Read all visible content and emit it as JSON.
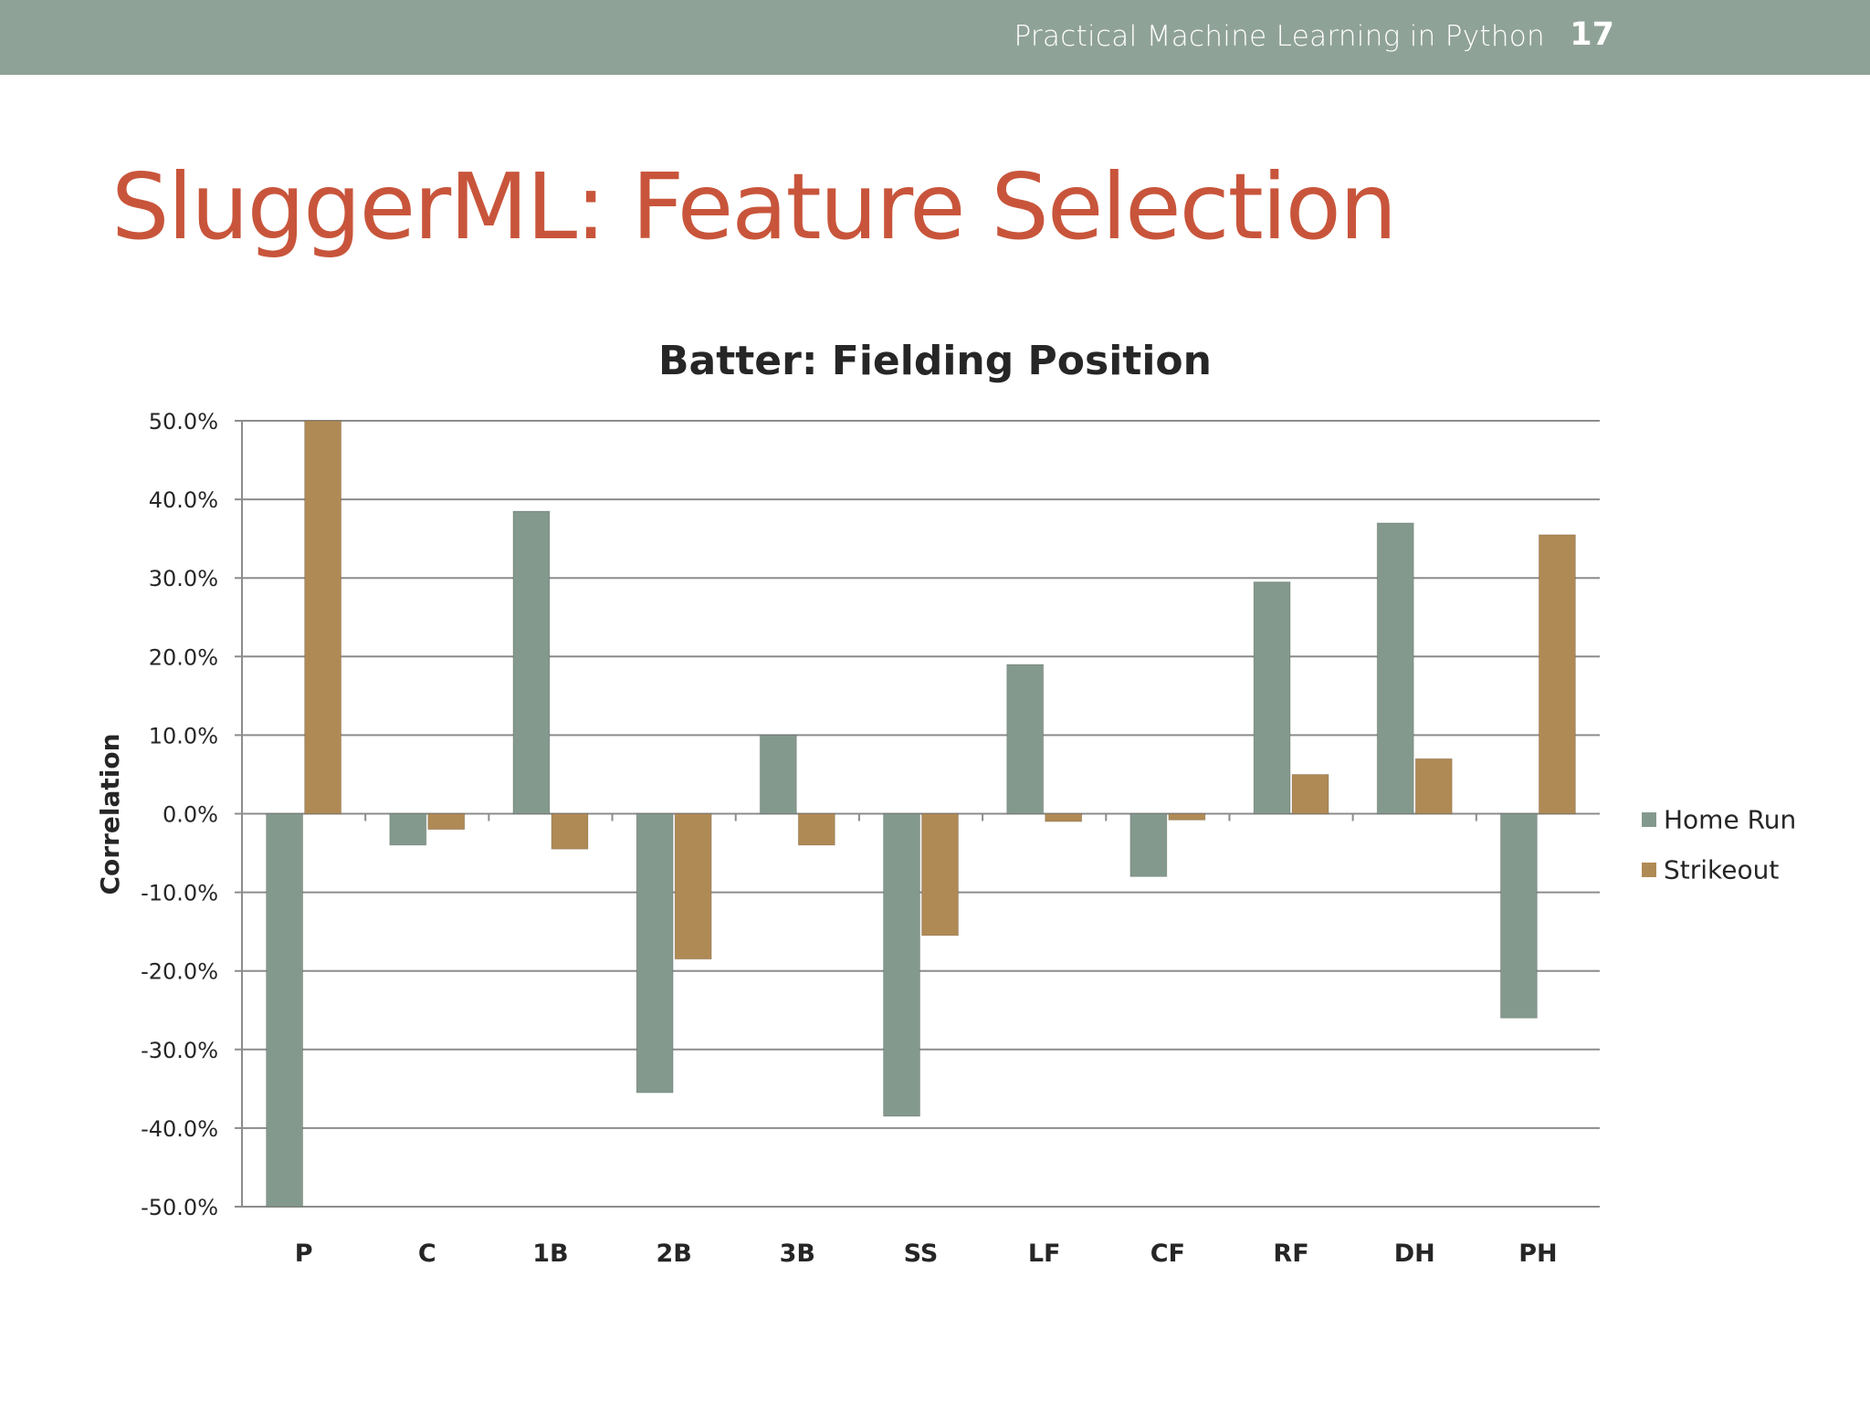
{
  "header": {
    "deck_title": "Practical Machine Learning in Python",
    "slide_number": "17"
  },
  "slide": {
    "title": "SluggerML: Feature Selection"
  },
  "colors": {
    "header_bar": "#8fa298",
    "title": "#c8553b",
    "home_run": "#84998d",
    "strikeout": "#b08a55"
  },
  "chart_data": {
    "type": "bar",
    "title": "Batter: Fielding Position",
    "xlabel": "",
    "ylabel": "Correlation",
    "ylim": [
      -0.5,
      0.5
    ],
    "yticks": [
      0.5,
      0.4,
      0.3,
      0.2,
      0.1,
      0.0,
      -0.1,
      -0.2,
      -0.3,
      -0.4,
      -0.5
    ],
    "ytick_labels": [
      "50.0%",
      "40.0%",
      "30.0%",
      "20.0%",
      "10.0%",
      "0.0%",
      "-10.0%",
      "-20.0%",
      "-30.0%",
      "-40.0%",
      "-50.0%"
    ],
    "categories": [
      "P",
      "C",
      "1B",
      "2B",
      "3B",
      "SS",
      "LF",
      "CF",
      "RF",
      "DH",
      "PH"
    ],
    "series": [
      {
        "name": "Home Run",
        "color": "#84998d",
        "values": [
          -0.5,
          -0.04,
          0.385,
          -0.355,
          0.1,
          -0.385,
          0.19,
          -0.08,
          0.295,
          0.37,
          -0.26
        ]
      },
      {
        "name": "Strikeout",
        "color": "#b08a55",
        "values": [
          0.5,
          -0.02,
          -0.045,
          -0.185,
          -0.04,
          -0.155,
          -0.01,
          -0.008,
          0.05,
          0.07,
          0.355
        ]
      }
    ],
    "grid": true,
    "legend_position": "right"
  }
}
